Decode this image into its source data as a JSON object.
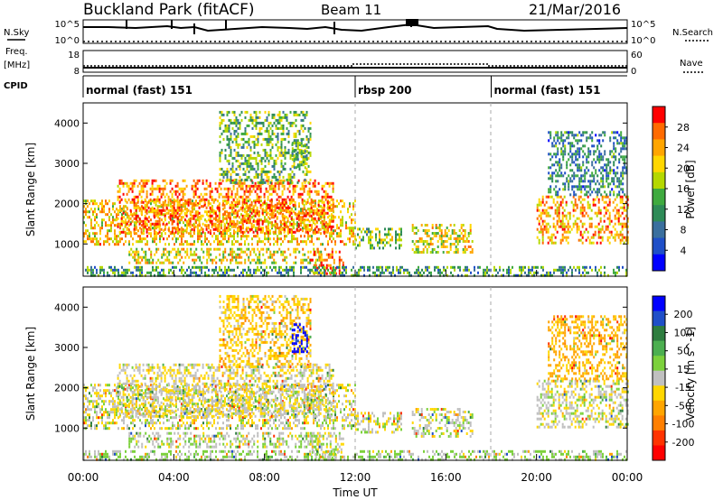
{
  "header": {
    "site": "Buckland Park (fitACF)",
    "beam": "Beam 11",
    "date": "21/Mar/2016"
  },
  "noise_panel": {
    "left_label": "N.Sky",
    "left_ticks": [
      "10^5",
      "10^0"
    ],
    "right_label": "N.Search",
    "right_ticks": [
      "10^5",
      "10^0"
    ]
  },
  "freq_panel": {
    "label_line1": "Freq.",
    "label_line2": "[MHz]",
    "left_ticks": [
      "18",
      "8"
    ],
    "right_label": "Nave",
    "right_ticks": [
      "60",
      "0"
    ]
  },
  "cpid_panel": {
    "label": "CPID",
    "segments": [
      {
        "label": "normal (fast) 151",
        "start_hour": 0,
        "end_hour": 12
      },
      {
        "label": "rbsp 200",
        "start_hour": 12,
        "end_hour": 18
      },
      {
        "label": "normal (fast) 151",
        "start_hour": 18,
        "end_hour": 24
      }
    ]
  },
  "axes": {
    "x_ticks": [
      "00:00",
      "04:00",
      "08:00",
      "12:00",
      "16:00",
      "20:00",
      "00:00"
    ],
    "x_label": "Time UT",
    "y_label": "Slant Range [km]",
    "y_ticks": [
      "1000",
      "2000",
      "3000",
      "4000"
    ]
  },
  "power_colorbar": {
    "label": "Power [dB]",
    "ticks": [
      "28",
      "24",
      "20",
      "16",
      "12",
      "8",
      "4"
    ],
    "colors": [
      "#ff0000",
      "#ff6a00",
      "#ffa500",
      "#ffd700",
      "#b5d800",
      "#3faa3f",
      "#2e8b57",
      "#3a6f9e",
      "#1f4fc8",
      "#0000ff"
    ]
  },
  "velocity_colorbar": {
    "label": "Velocity [m s^-1]",
    "ticks": [
      "200",
      "100",
      "50",
      "15",
      "-15",
      "-50",
      "-100",
      "-200"
    ],
    "colors": [
      "#0000ff",
      "#1f4fc8",
      "#2e7d3f",
      "#4caf50",
      "#7cd13c",
      "#c0c0c0",
      "#ffd700",
      "#ffa500",
      "#ff7f00",
      "#ff3300",
      "#ff0000"
    ]
  },
  "chart_data": {
    "type": "heatmap",
    "panels": [
      "Power [dB]",
      "Velocity [m s^-1]"
    ],
    "xlabel": "Time UT",
    "xlim_hours": [
      0,
      24
    ],
    "ylabel": "Slant Range [km]",
    "ylim": [
      200,
      4500
    ],
    "echo_features": [
      {
        "start_hour": 0.0,
        "end_hour": 12.0,
        "range_km": [
          1000,
          2100
        ],
        "power_db": 22,
        "velocity": -5
      },
      {
        "start_hour": 1.5,
        "end_hour": 11.0,
        "range_km": [
          1300,
          2600
        ],
        "power_db": 26,
        "velocity": -10
      },
      {
        "start_hour": 2.0,
        "end_hour": 10.5,
        "range_km": [
          500,
          900
        ],
        "power_db": 20,
        "velocity": 5
      },
      {
        "start_hour": 6.0,
        "end_hour": 10.0,
        "range_km": [
          2500,
          4300
        ],
        "power_db": 15,
        "velocity": -40
      },
      {
        "start_hour": 9.2,
        "end_hour": 9.9,
        "range_km": [
          2900,
          3600
        ],
        "power_db": 14,
        "velocity": 220
      },
      {
        "start_hour": 10.0,
        "end_hour": 11.5,
        "range_km": [
          250,
          900
        ],
        "power_db": 27,
        "velocity": 0
      },
      {
        "start_hour": 12.0,
        "end_hour": 14.0,
        "range_km": [
          900,
          1400
        ],
        "power_db": 16,
        "velocity": 0
      },
      {
        "start_hour": 14.5,
        "end_hour": 17.2,
        "range_km": [
          800,
          1500
        ],
        "power_db": 20,
        "velocity": 0
      },
      {
        "start_hour": 0.0,
        "end_hour": 24.0,
        "range_km": [
          200,
          450
        ],
        "power_db": 12,
        "velocity": 20
      },
      {
        "start_hour": 20.0,
        "end_hour": 24.0,
        "range_km": [
          1000,
          2200
        ],
        "power_db": 24,
        "velocity": -5
      },
      {
        "start_hour": 20.5,
        "end_hour": 24.0,
        "range_km": [
          2200,
          3800
        ],
        "power_db": 10,
        "velocity": -60
      }
    ]
  }
}
